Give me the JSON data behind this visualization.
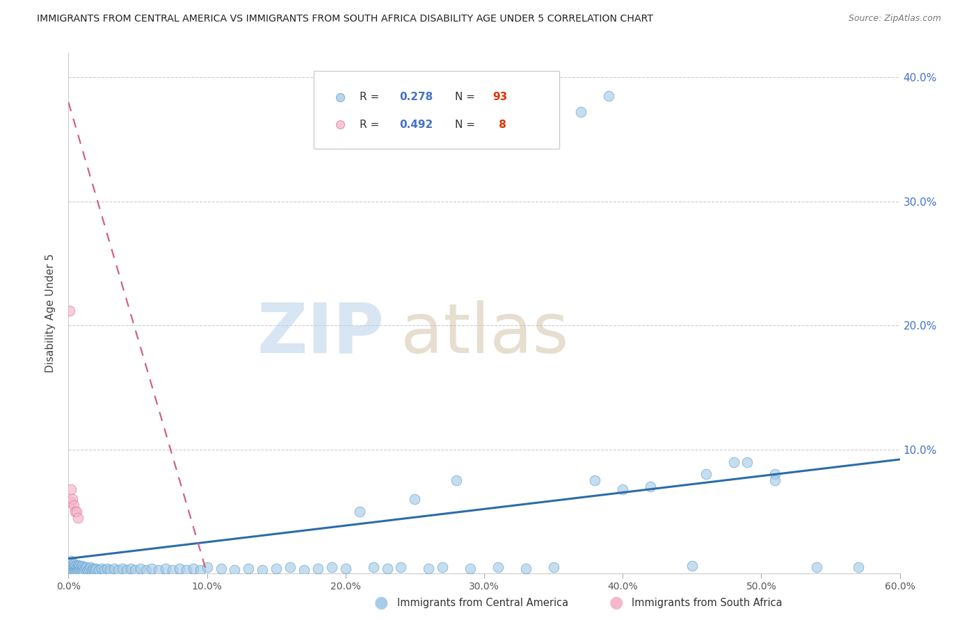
{
  "title": "IMMIGRANTS FROM CENTRAL AMERICA VS IMMIGRANTS FROM SOUTH AFRICA DISABILITY AGE UNDER 5 CORRELATION CHART",
  "source": "Source: ZipAtlas.com",
  "ylabel": "Disability Age Under 5",
  "xlim": [
    0.0,
    0.6
  ],
  "ylim": [
    0.0,
    0.42
  ],
  "xticks": [
    0.0,
    0.1,
    0.2,
    0.3,
    0.4,
    0.5,
    0.6
  ],
  "xtick_labels": [
    "0.0%",
    "10.0%",
    "20.0%",
    "30.0%",
    "40.0%",
    "50.0%",
    "60.0%"
  ],
  "yticks": [
    0.0,
    0.1,
    0.2,
    0.3,
    0.4
  ],
  "ytick_right_labels": [
    "",
    "10.0%",
    "20.0%",
    "30.0%",
    "40.0%"
  ],
  "legend_blue_label": "Immigrants from Central America",
  "legend_pink_label": "Immigrants from South Africa",
  "r_blue": "0.278",
  "n_blue": "93",
  "r_pink": "0.492",
  "n_pink": "8",
  "blue_scatter_color": "#a8cce8",
  "blue_edge_color": "#5b9ec9",
  "pink_scatter_color": "#f4b8cc",
  "pink_edge_color": "#e07898",
  "blue_line_color": "#2b6ca8",
  "pink_line_color": "#d06080",
  "right_axis_color": "#4472c4",
  "ca_x": [
    0.001,
    0.001,
    0.002,
    0.002,
    0.002,
    0.003,
    0.003,
    0.003,
    0.004,
    0.004,
    0.004,
    0.005,
    0.005,
    0.005,
    0.006,
    0.006,
    0.007,
    0.007,
    0.007,
    0.008,
    0.008,
    0.009,
    0.009,
    0.01,
    0.01,
    0.011,
    0.011,
    0.012,
    0.013,
    0.014,
    0.015,
    0.016,
    0.017,
    0.018,
    0.019,
    0.02,
    0.022,
    0.024,
    0.026,
    0.028,
    0.03,
    0.033,
    0.036,
    0.039,
    0.042,
    0.045,
    0.048,
    0.052,
    0.056,
    0.06,
    0.065,
    0.07,
    0.075,
    0.08,
    0.085,
    0.09,
    0.095,
    0.1,
    0.11,
    0.12,
    0.13,
    0.14,
    0.15,
    0.16,
    0.17,
    0.18,
    0.19,
    0.2,
    0.21,
    0.22,
    0.23,
    0.24,
    0.25,
    0.26,
    0.27,
    0.28,
    0.29,
    0.31,
    0.33,
    0.35,
    0.37,
    0.39,
    0.42,
    0.45,
    0.48,
    0.51,
    0.46,
    0.49,
    0.54,
    0.57,
    0.51,
    0.38,
    0.4
  ],
  "ca_y": [
    0.008,
    0.004,
    0.01,
    0.005,
    0.003,
    0.007,
    0.004,
    0.002,
    0.008,
    0.005,
    0.002,
    0.006,
    0.003,
    0.001,
    0.005,
    0.002,
    0.007,
    0.004,
    0.002,
    0.006,
    0.003,
    0.005,
    0.002,
    0.006,
    0.003,
    0.005,
    0.002,
    0.004,
    0.005,
    0.003,
    0.004,
    0.005,
    0.003,
    0.004,
    0.003,
    0.004,
    0.003,
    0.004,
    0.003,
    0.004,
    0.003,
    0.004,
    0.003,
    0.004,
    0.003,
    0.004,
    0.003,
    0.004,
    0.003,
    0.004,
    0.003,
    0.004,
    0.003,
    0.004,
    0.003,
    0.004,
    0.003,
    0.005,
    0.004,
    0.003,
    0.004,
    0.003,
    0.004,
    0.005,
    0.003,
    0.004,
    0.005,
    0.004,
    0.05,
    0.005,
    0.004,
    0.005,
    0.06,
    0.004,
    0.005,
    0.075,
    0.004,
    0.005,
    0.004,
    0.005,
    0.372,
    0.385,
    0.07,
    0.006,
    0.09,
    0.08,
    0.08,
    0.09,
    0.005,
    0.005,
    0.075,
    0.075,
    0.068
  ],
  "sa_x": [
    0.001,
    0.002,
    0.002,
    0.003,
    0.004,
    0.005,
    0.006,
    0.007
  ],
  "sa_y": [
    0.212,
    0.068,
    0.058,
    0.06,
    0.055,
    0.05,
    0.05,
    0.045
  ],
  "blue_trend_x": [
    0.0,
    0.6
  ],
  "blue_trend_y": [
    0.012,
    0.092
  ],
  "pink_trend_x": [
    0.0,
    0.1
  ],
  "pink_trend_y": [
    0.38,
    0.0
  ]
}
